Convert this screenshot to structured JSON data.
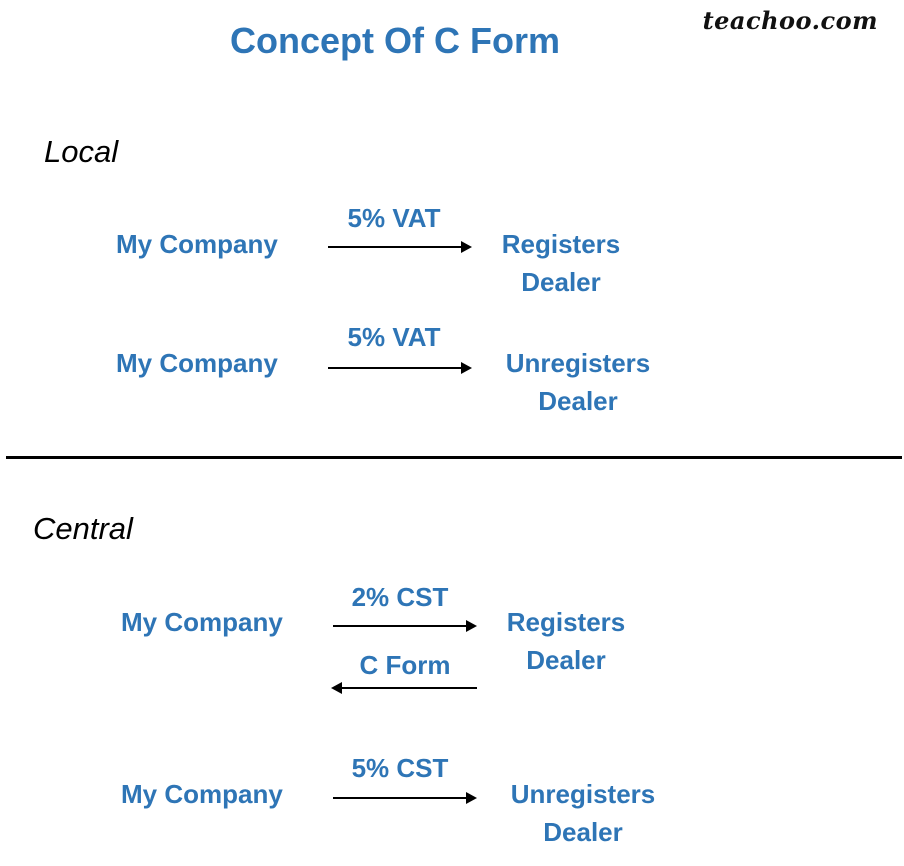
{
  "title": "Concept Of C Form",
  "brand": "teachoo.com",
  "local": {
    "heading": "Local",
    "rows": [
      {
        "from": "My Company",
        "label": "5% VAT",
        "to_line1": "Registers",
        "to_line2": "Dealer"
      },
      {
        "from": "My Company",
        "label": "5% VAT",
        "to_line1": "Unregisters",
        "to_line2": "Dealer"
      }
    ]
  },
  "central": {
    "heading": "Central",
    "rows": [
      {
        "from": "My Company",
        "label": "2% CST",
        "return_label": "C Form",
        "to_line1": "Registers",
        "to_line2": "Dealer"
      },
      {
        "from": "My Company",
        "label": "5% CST",
        "to_line1": "Unregisters",
        "to_line2": "Dealer"
      }
    ]
  }
}
